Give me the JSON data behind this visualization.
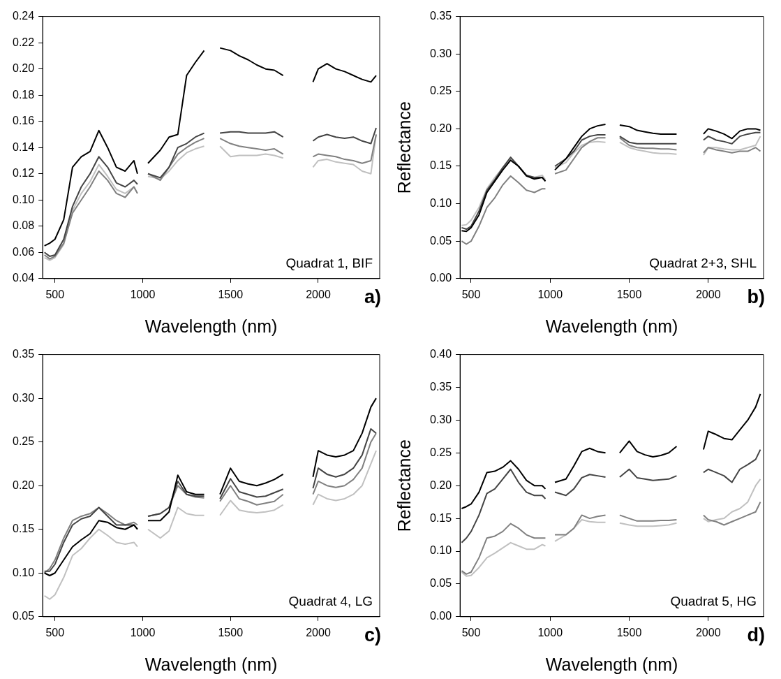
{
  "chart_data": [
    {
      "type": "line",
      "xlabel": "Wavelength (nm)",
      "marker": "none",
      "annotations": [
        "Quadrat 1, BIF",
        "a)"
      ],
      "x": [
        440,
        470,
        500,
        550,
        600,
        650,
        700,
        750,
        800,
        850,
        900,
        950,
        970,
        1000,
        1030,
        1100,
        1150,
        1200,
        1250,
        1300,
        1350,
        1400,
        1440,
        1500,
        1550,
        1600,
        1650,
        1700,
        1750,
        1800,
        1900,
        1970,
        2000,
        2050,
        2100,
        2150,
        2200,
        2250,
        2300,
        2330
      ],
      "xlim": [
        430,
        2350
      ],
      "xticks": [
        500,
        1000,
        1500,
        2000
      ],
      "ylim": [
        0.04,
        0.24
      ],
      "yticks": [
        0.04,
        0.06,
        0.08,
        {
          "value": 0.1,
          "label": "0.10"
        },
        0.12,
        0.14,
        0.16,
        0.18,
        {
          "value": 0.2,
          "label": "0.20"
        },
        0.22,
        0.24
      ],
      "series": [
        {
          "color": "#000000",
          "values": [
            0.065,
            0.067,
            0.07,
            0.085,
            0.125,
            0.133,
            0.137,
            0.153,
            0.14,
            0.125,
            0.122,
            0.13,
            0.12,
            null,
            0.128,
            0.138,
            0.148,
            0.15,
            0.195,
            0.205,
            0.214,
            null,
            0.216,
            0.214,
            0.21,
            0.207,
            0.203,
            0.2,
            0.199,
            0.195,
            null,
            0.19,
            0.2,
            0.204,
            0.2,
            0.198,
            0.195,
            0.192,
            0.19,
            0.195
          ]
        },
        {
          "color": "#444444",
          "values": [
            0.06,
            0.057,
            0.058,
            0.07,
            0.095,
            0.11,
            0.12,
            0.133,
            0.125,
            0.113,
            0.11,
            0.115,
            0.112,
            null,
            0.12,
            0.117,
            0.125,
            0.14,
            0.143,
            0.148,
            0.151,
            null,
            0.151,
            0.152,
            0.152,
            0.151,
            0.151,
            0.151,
            0.152,
            0.148,
            null,
            0.145,
            0.148,
            0.15,
            0.148,
            0.147,
            0.148,
            0.145,
            0.143,
            0.155
          ]
        },
        {
          "color": "#808080",
          "values": [
            0.058,
            0.055,
            0.057,
            0.067,
            0.09,
            0.1,
            0.11,
            0.122,
            0.115,
            0.105,
            0.102,
            0.11,
            0.105,
            null,
            0.12,
            0.115,
            0.125,
            0.135,
            0.14,
            0.144,
            0.147,
            null,
            0.147,
            0.143,
            0.141,
            0.14,
            0.139,
            0.138,
            0.139,
            0.135,
            null,
            0.133,
            0.135,
            0.134,
            0.133,
            0.131,
            0.13,
            0.128,
            0.13,
            0.15
          ]
        },
        {
          "color": "#c0c0c0",
          "values": [
            0.056,
            0.054,
            0.056,
            0.066,
            0.092,
            0.105,
            0.114,
            0.127,
            0.118,
            0.108,
            0.105,
            0.11,
            0.105,
            null,
            0.118,
            0.116,
            0.122,
            0.13,
            0.136,
            0.139,
            0.141,
            null,
            0.141,
            0.133,
            0.134,
            0.134,
            0.134,
            0.135,
            0.134,
            0.132,
            null,
            0.125,
            0.13,
            0.131,
            0.129,
            0.128,
            0.127,
            0.122,
            0.12,
            0.15
          ]
        }
      ]
    },
    {
      "type": "line",
      "xlabel": "Wavelength (nm)",
      "ylabel": "Reflectance",
      "marker": "none",
      "annotations": [
        "Quadrat 2+3, SHL",
        "b)"
      ],
      "x": [
        440,
        470,
        500,
        550,
        600,
        650,
        700,
        750,
        800,
        850,
        900,
        950,
        970,
        1000,
        1030,
        1100,
        1150,
        1200,
        1250,
        1300,
        1350,
        1400,
        1440,
        1500,
        1550,
        1600,
        1650,
        1700,
        1750,
        1800,
        1900,
        1970,
        2000,
        2050,
        2100,
        2150,
        2200,
        2250,
        2300,
        2330
      ],
      "xlim": [
        430,
        2350
      ],
      "xticks": [
        500,
        1000,
        1500,
        2000
      ],
      "ylim": [
        0,
        0.35
      ],
      "yticks": [
        {
          "value": 0,
          "label": "0.00"
        },
        0.05,
        {
          "value": 0.1,
          "label": "0.10"
        },
        0.15,
        {
          "value": 0.2,
          "label": "0.20"
        },
        0.25,
        {
          "value": 0.3,
          "label": "0.30"
        },
        0.35
      ],
      "series": [
        {
          "color": "#000000",
          "values": [
            0.064,
            0.063,
            0.068,
            0.085,
            0.115,
            0.13,
            0.145,
            0.158,
            0.15,
            0.137,
            0.133,
            0.135,
            0.13,
            null,
            0.145,
            0.16,
            0.175,
            0.19,
            0.2,
            0.204,
            0.206,
            null,
            0.205,
            0.203,
            0.198,
            0.196,
            0.194,
            0.193,
            0.193,
            0.193,
            null,
            0.193,
            0.2,
            0.197,
            0.193,
            0.187,
            0.197,
            0.2,
            0.2,
            0.198
          ]
        },
        {
          "color": "#444444",
          "values": [
            0.068,
            0.066,
            0.07,
            0.09,
            0.118,
            0.132,
            0.148,
            0.162,
            0.15,
            0.138,
            0.135,
            0.135,
            0.13,
            null,
            0.15,
            0.16,
            0.17,
            0.185,
            0.19,
            0.192,
            0.192,
            null,
            0.19,
            0.182,
            0.18,
            0.18,
            0.18,
            0.18,
            0.18,
            0.18,
            null,
            0.185,
            0.19,
            0.185,
            0.183,
            0.18,
            0.19,
            0.193,
            0.195,
            0.195
          ]
        },
        {
          "color": "#808080",
          "values": [
            0.05,
            0.046,
            0.05,
            0.07,
            0.095,
            0.108,
            0.125,
            0.137,
            0.128,
            0.118,
            0.115,
            0.12,
            0.12,
            null,
            0.14,
            0.145,
            0.16,
            0.175,
            0.183,
            0.188,
            0.188,
            null,
            0.188,
            0.178,
            0.175,
            0.174,
            0.174,
            0.173,
            0.173,
            0.172,
            null,
            0.168,
            0.175,
            0.172,
            0.17,
            0.168,
            0.17,
            0.17,
            0.175,
            0.17
          ]
        },
        {
          "color": "#c0c0c0",
          "values": [
            0.071,
            0.072,
            0.078,
            0.095,
            0.12,
            0.135,
            0.148,
            0.16,
            0.15,
            0.138,
            0.135,
            0.138,
            0.132,
            null,
            0.148,
            0.155,
            0.168,
            0.178,
            0.182,
            0.183,
            0.182,
            null,
            0.182,
            0.175,
            0.172,
            0.17,
            0.168,
            0.167,
            0.167,
            0.166,
            null,
            0.165,
            0.175,
            0.175,
            0.173,
            0.172,
            0.172,
            0.175,
            0.178,
            0.19
          ]
        }
      ]
    },
    {
      "type": "line",
      "xlabel": "Wavelength (nm)",
      "marker": "none",
      "annotations": [
        "Quadrat 4, LG",
        "c)"
      ],
      "x": [
        440,
        470,
        500,
        550,
        600,
        650,
        700,
        750,
        800,
        850,
        900,
        950,
        970,
        1000,
        1030,
        1100,
        1150,
        1200,
        1250,
        1300,
        1350,
        1400,
        1440,
        1500,
        1550,
        1600,
        1650,
        1700,
        1750,
        1800,
        1900,
        1970,
        2000,
        2050,
        2100,
        2150,
        2200,
        2250,
        2300,
        2330
      ],
      "xlim": [
        430,
        2350
      ],
      "xticks": [
        500,
        1000,
        1500,
        2000
      ],
      "ylim": [
        0.05,
        0.35
      ],
      "yticks": [
        0.05,
        {
          "value": 0.1,
          "label": "0.10"
        },
        0.15,
        {
          "value": 0.2,
          "label": "0.20"
        },
        0.25,
        {
          "value": 0.3,
          "label": "0.30"
        },
        0.35
      ],
      "series": [
        {
          "color": "#000000",
          "values": [
            0.1,
            0.097,
            0.1,
            0.115,
            0.13,
            0.138,
            0.145,
            0.16,
            0.158,
            0.152,
            0.15,
            0.155,
            0.15,
            null,
            0.16,
            0.16,
            0.17,
            0.212,
            0.193,
            0.19,
            0.19,
            null,
            0.19,
            0.22,
            0.205,
            0.202,
            0.2,
            0.203,
            0.207,
            0.213,
            null,
            0.21,
            0.24,
            0.235,
            0.233,
            0.235,
            0.24,
            0.26,
            0.29,
            0.3
          ]
        },
        {
          "color": "#444444",
          "values": [
            0.102,
            0.102,
            0.11,
            0.135,
            0.155,
            0.162,
            0.165,
            0.175,
            0.165,
            0.155,
            0.155,
            0.155,
            0.15,
            null,
            0.165,
            0.168,
            0.175,
            0.205,
            0.19,
            0.188,
            0.188,
            null,
            0.185,
            0.208,
            0.193,
            0.19,
            0.187,
            0.188,
            0.192,
            0.196,
            null,
            0.197,
            0.22,
            0.213,
            0.21,
            0.213,
            0.22,
            0.235,
            0.265,
            0.26
          ]
        },
        {
          "color": "#808080",
          "values": [
            0.1,
            0.105,
            0.115,
            0.14,
            0.16,
            0.165,
            0.168,
            0.175,
            0.168,
            0.16,
            0.155,
            0.158,
            0.155,
            null,
            0.165,
            0.168,
            0.175,
            0.2,
            0.19,
            0.187,
            0.186,
            null,
            0.182,
            0.2,
            0.185,
            0.182,
            0.178,
            0.18,
            0.182,
            0.19,
            null,
            0.19,
            0.205,
            0.2,
            0.198,
            0.2,
            0.207,
            0.22,
            0.25,
            0.26
          ]
        },
        {
          "color": "#c0c0c0",
          "values": [
            0.074,
            0.07,
            0.075,
            0.095,
            0.12,
            0.128,
            0.14,
            0.15,
            0.143,
            0.135,
            0.133,
            0.135,
            0.13,
            null,
            0.15,
            0.14,
            0.148,
            0.175,
            0.168,
            0.166,
            0.166,
            null,
            0.166,
            0.183,
            0.172,
            0.17,
            0.169,
            0.17,
            0.172,
            0.178,
            null,
            0.178,
            0.19,
            0.185,
            0.183,
            0.185,
            0.19,
            0.2,
            0.225,
            0.24
          ]
        }
      ]
    },
    {
      "type": "line",
      "xlabel": "Wavelength (nm)",
      "ylabel": "Reflectance",
      "marker": "none",
      "annotations": [
        "Quadrat 5, HG",
        "d)"
      ],
      "x": [
        440,
        470,
        500,
        550,
        600,
        650,
        700,
        750,
        800,
        850,
        900,
        950,
        970,
        1000,
        1030,
        1100,
        1150,
        1200,
        1250,
        1300,
        1350,
        1400,
        1440,
        1500,
        1550,
        1600,
        1650,
        1700,
        1750,
        1800,
        1900,
        1970,
        2000,
        2050,
        2100,
        2150,
        2200,
        2250,
        2300,
        2330
      ],
      "xlim": [
        430,
        2350
      ],
      "xticks": [
        500,
        1000,
        1500,
        2000
      ],
      "ylim": [
        0,
        0.4
      ],
      "yticks": [
        {
          "value": 0,
          "label": "0.00"
        },
        0.05,
        {
          "value": 0.1,
          "label": "0.10"
        },
        0.15,
        {
          "value": 0.2,
          "label": "0.20"
        },
        0.25,
        {
          "value": 0.3,
          "label": "0.30"
        },
        0.35,
        {
          "value": 0.4,
          "label": "0.40"
        }
      ],
      "series": [
        {
          "color": "#000000",
          "values": [
            0.165,
            0.168,
            0.172,
            0.19,
            0.22,
            0.222,
            0.228,
            0.238,
            0.225,
            0.208,
            0.2,
            0.2,
            0.195,
            null,
            0.205,
            0.21,
            0.23,
            0.252,
            0.257,
            0.252,
            0.25,
            null,
            0.25,
            0.268,
            0.252,
            0.247,
            0.244,
            0.246,
            0.25,
            0.26,
            null,
            0.255,
            0.283,
            0.278,
            0.272,
            0.27,
            0.285,
            0.3,
            0.32,
            0.34
          ]
        },
        {
          "color": "#444444",
          "values": [
            0.113,
            0.12,
            0.13,
            0.155,
            0.188,
            0.195,
            0.21,
            0.225,
            0.205,
            0.19,
            0.185,
            0.185,
            0.18,
            null,
            0.19,
            0.185,
            0.195,
            0.212,
            0.217,
            0.215,
            0.213,
            null,
            0.213,
            0.225,
            0.212,
            0.21,
            0.208,
            0.209,
            0.21,
            0.215,
            null,
            0.22,
            0.225,
            0.22,
            0.215,
            0.205,
            0.225,
            0.232,
            0.24,
            0.255
          ]
        },
        {
          "color": "#808080",
          "values": [
            0.07,
            0.065,
            0.068,
            0.09,
            0.12,
            0.123,
            0.13,
            0.142,
            0.135,
            0.125,
            0.12,
            0.12,
            0.12,
            null,
            0.125,
            0.125,
            0.135,
            0.155,
            0.15,
            0.153,
            0.155,
            null,
            0.155,
            0.15,
            0.146,
            0.146,
            0.146,
            0.147,
            0.147,
            0.148,
            null,
            0.155,
            0.148,
            0.145,
            0.14,
            0.145,
            0.15,
            0.155,
            0.16,
            0.175
          ]
        },
        {
          "color": "#c0c0c0",
          "values": [
            0.068,
            0.062,
            0.063,
            0.075,
            0.09,
            0.097,
            0.105,
            0.113,
            0.108,
            0.103,
            0.103,
            0.11,
            0.108,
            null,
            0.115,
            0.125,
            0.135,
            0.148,
            0.145,
            0.144,
            0.144,
            null,
            0.143,
            0.14,
            0.138,
            0.138,
            0.138,
            0.139,
            0.14,
            0.143,
            null,
            0.15,
            0.145,
            0.148,
            0.15,
            0.16,
            0.165,
            0.175,
            0.2,
            0.21
          ]
        }
      ]
    }
  ]
}
